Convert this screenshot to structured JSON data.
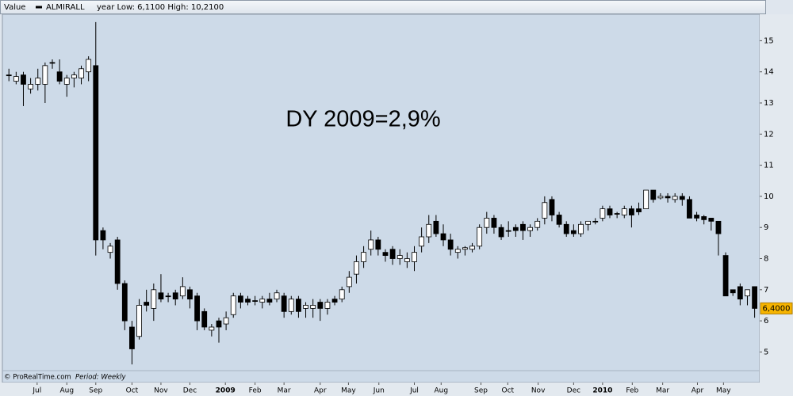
{
  "chart_data": {
    "type": "candlestick",
    "value_label": "Value",
    "stats": "year Low: 6,1100 High: 10,2100",
    "annotation": "DY 2009=2,9%",
    "source": "© ProRealTime.com",
    "period": "Period: Weekly",
    "last_price": {
      "value": 6.4,
      "label": "6,4000"
    },
    "xlim": [
      -0.9,
      103.7
    ],
    "xticks": [
      {
        "value": 3.9,
        "label": "Jul"
      },
      {
        "value": 8.0,
        "label": "Aug"
      },
      {
        "value": 12.0,
        "label": "Sep"
      },
      {
        "value": 17.0,
        "label": "Oct"
      },
      {
        "value": 21.0,
        "label": "Nov"
      },
      {
        "value": 25.0,
        "label": "Dec"
      },
      {
        "value": 29.9,
        "label": "2009"
      },
      {
        "value": 34.0,
        "label": "Feb"
      },
      {
        "value": 38.0,
        "label": "Mar"
      },
      {
        "value": 43.0,
        "label": "Apr"
      },
      {
        "value": 46.9,
        "label": "May"
      },
      {
        "value": 51.1,
        "label": "Jun"
      },
      {
        "value": 56.0,
        "label": "Jul"
      },
      {
        "value": 59.7,
        "label": "Aug"
      },
      {
        "value": 65.2,
        "label": "Sep"
      },
      {
        "value": 68.9,
        "label": "Oct"
      },
      {
        "value": 73.1,
        "label": "Nov"
      },
      {
        "value": 78.0,
        "label": "Dec"
      },
      {
        "value": 82.0,
        "label": "2010"
      },
      {
        "value": 86.1,
        "label": "Feb"
      },
      {
        "value": 90.3,
        "label": "Mar"
      },
      {
        "value": 95.1,
        "label": "Apr"
      },
      {
        "value": 98.7,
        "label": "May"
      }
    ],
    "ylim": [
      4.4,
      15.85
    ],
    "yticks": [
      5,
      6,
      7,
      8,
      9,
      10,
      11,
      12,
      13,
      14,
      15
    ],
    "series": [
      {
        "name": "ALMIRALL",
        "color": "#000000",
        "up_color": "#ffffff",
        "open": [
          13.9,
          13.7,
          13.9,
          13.45,
          13.6,
          13.6,
          14.3,
          14.0,
          13.6,
          13.8,
          13.8,
          14.0,
          14.2,
          8.9,
          8.2,
          8.6,
          7.2,
          5.8,
          5.5,
          6.6,
          6.4,
          6.9,
          6.8,
          6.9,
          6.8,
          7.0,
          6.8,
          6.3,
          5.7,
          6.0,
          5.9,
          6.2,
          6.8,
          6.7,
          6.65,
          6.6,
          6.7,
          6.7,
          6.8,
          6.3,
          6.7,
          6.4,
          6.4,
          6.6,
          6.4,
          6.7,
          6.7,
          7.1,
          7.5,
          7.9,
          8.3,
          8.6,
          8.2,
          8.3,
          8.0,
          7.9,
          7.9,
          8.4,
          8.7,
          9.2,
          8.8,
          8.6,
          8.2,
          8.3,
          8.3,
          8.4,
          9.0,
          9.3,
          9.0,
          8.9,
          9.0,
          9.1,
          8.9,
          9.0,
          9.3,
          9.9,
          9.4,
          9.1,
          8.9,
          8.8,
          9.1,
          9.2,
          9.3,
          9.6,
          9.45,
          9.4,
          9.6,
          9.6,
          9.6,
          10.2,
          9.95,
          10.0,
          9.9,
          10.0,
          9.9,
          9.4,
          9.35,
          9.3,
          9.2,
          8.1,
          7.0,
          7.1,
          6.8,
          7.1
        ],
        "high": [
          14.1,
          14.0,
          14.0,
          13.8,
          14.1,
          14.3,
          14.4,
          14.4,
          13.9,
          14.0,
          14.2,
          14.5,
          15.6,
          9.0,
          8.5,
          8.7,
          7.3,
          6.0,
          6.7,
          7.0,
          7.2,
          7.5,
          6.9,
          7.0,
          7.4,
          7.1,
          6.9,
          6.4,
          5.9,
          6.1,
          6.3,
          6.9,
          6.9,
          6.8,
          6.8,
          6.8,
          6.9,
          7.0,
          6.9,
          6.8,
          6.8,
          6.6,
          6.7,
          6.7,
          6.7,
          6.8,
          7.1,
          7.6,
          8.1,
          8.4,
          8.9,
          8.7,
          8.3,
          8.4,
          8.3,
          8.2,
          8.4,
          9.0,
          9.4,
          9.4,
          9.1,
          8.8,
          8.4,
          8.4,
          8.5,
          9.1,
          9.5,
          9.4,
          9.1,
          9.2,
          9.1,
          9.2,
          9.1,
          9.3,
          10.0,
          10.0,
          9.5,
          9.2,
          9.1,
          9.2,
          9.2,
          9.3,
          9.7,
          9.7,
          9.5,
          9.7,
          9.7,
          9.8,
          10.2,
          10.2,
          10.1,
          10.1,
          10.1,
          10.1,
          10.0,
          9.5,
          9.4,
          9.3,
          9.2,
          8.2,
          7.0,
          7.2,
          7.0,
          7.1
        ],
        "low": [
          13.7,
          13.6,
          12.9,
          13.3,
          13.4,
          13.0,
          14.1,
          13.6,
          13.2,
          13.5,
          13.6,
          13.7,
          8.1,
          8.3,
          8.0,
          7.0,
          5.7,
          4.6,
          5.4,
          6.3,
          6.0,
          6.6,
          6.6,
          6.5,
          6.7,
          6.4,
          5.7,
          5.7,
          5.5,
          5.3,
          5.7,
          6.1,
          6.4,
          6.5,
          6.5,
          6.4,
          6.5,
          6.6,
          6.1,
          6.2,
          6.1,
          6.1,
          6.1,
          6.0,
          6.2,
          6.5,
          6.6,
          6.9,
          7.2,
          7.7,
          8.1,
          8.1,
          7.9,
          7.8,
          7.8,
          7.7,
          7.6,
          8.2,
          8.5,
          8.7,
          8.4,
          8.1,
          8.0,
          8.1,
          8.2,
          8.3,
          8.8,
          8.8,
          8.6,
          8.7,
          8.7,
          8.6,
          8.7,
          8.9,
          9.1,
          9.2,
          9.0,
          8.7,
          8.7,
          8.7,
          8.9,
          9.1,
          9.2,
          9.3,
          9.3,
          9.3,
          9.0,
          9.4,
          9.6,
          9.8,
          9.9,
          9.8,
          9.8,
          9.7,
          9.3,
          9.2,
          9.1,
          8.9,
          8.1,
          6.8,
          6.8,
          6.5,
          6.5,
          6.1
        ],
        "close": [
          13.9,
          13.85,
          13.6,
          13.6,
          13.8,
          14.2,
          14.3,
          13.7,
          13.8,
          13.9,
          14.1,
          14.4,
          8.6,
          8.6,
          8.4,
          7.2,
          6.0,
          5.1,
          6.5,
          6.5,
          7.0,
          6.7,
          6.8,
          6.7,
          7.1,
          6.7,
          6.0,
          5.8,
          5.8,
          5.8,
          6.1,
          6.8,
          6.6,
          6.6,
          6.65,
          6.7,
          6.6,
          6.9,
          6.3,
          6.7,
          6.3,
          6.5,
          6.5,
          6.4,
          6.6,
          6.6,
          7.0,
          7.4,
          7.9,
          8.2,
          8.6,
          8.3,
          8.1,
          8.0,
          8.1,
          8.0,
          8.2,
          8.7,
          9.1,
          8.8,
          8.6,
          8.3,
          8.3,
          8.35,
          8.4,
          9.0,
          9.3,
          9.0,
          8.7,
          8.9,
          8.9,
          8.9,
          9.0,
          9.2,
          9.8,
          9.4,
          9.1,
          8.8,
          8.8,
          9.1,
          9.2,
          9.2,
          9.6,
          9.4,
          9.45,
          9.6,
          9.4,
          9.5,
          10.2,
          9.9,
          10.0,
          9.95,
          10.0,
          9.9,
          9.3,
          9.3,
          9.25,
          9.2,
          8.8,
          6.8,
          6.9,
          6.7,
          7.0,
          6.4
        ]
      }
    ]
  }
}
